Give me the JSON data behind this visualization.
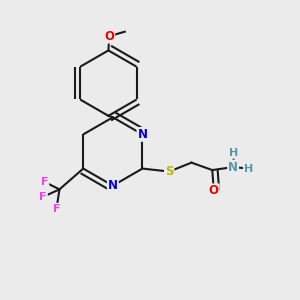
{
  "bg_color": "#ebebeb",
  "bond_color": "#1a1a1a",
  "bond_width": 1.5,
  "dbo": 0.018,
  "atom_colors": {
    "N": "#0000dd",
    "O": "#ee0000",
    "S": "#bbbb00",
    "F": "#ee44ee",
    "NH_color": "#5599aa"
  },
  "fs": 8.5
}
